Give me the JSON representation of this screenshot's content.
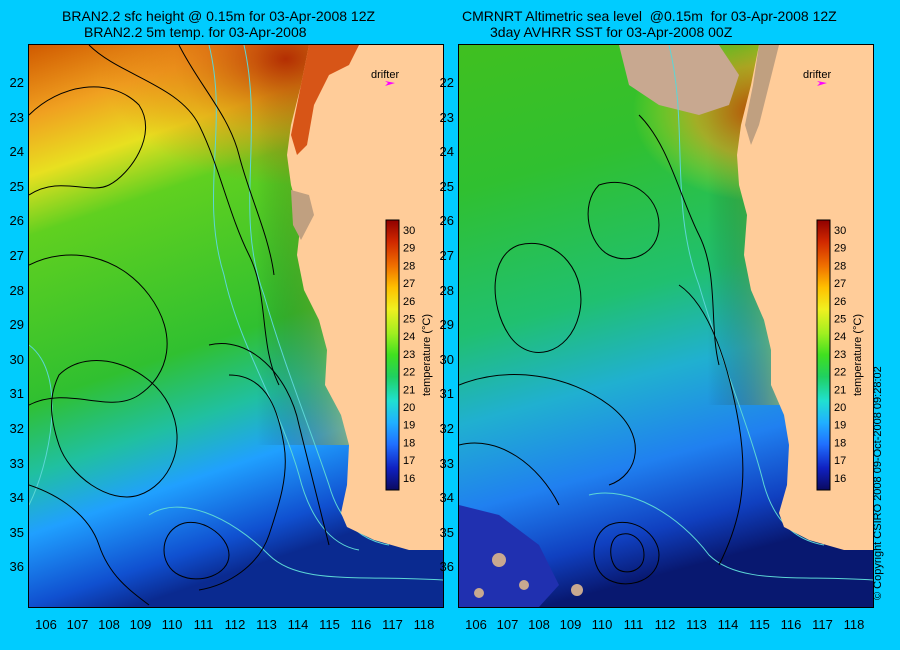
{
  "titles": {
    "left_line1": "BRAN2.2 sfc height @ 0.15m for 03-Apr-2008 12Z",
    "left_line2": "BRAN2.2 5m temp. for 03-Apr-2008",
    "right_line1": "CMRNRT Altimetric sea level  @0.15m  for 03-Apr-2008 12Z",
    "right_line2": "3day AVHRR SST for 03-Apr-2008 00Z"
  },
  "y_ticks": [
    "22",
    "23",
    "24",
    "25",
    "26",
    "27",
    "28",
    "29",
    "30",
    "31",
    "32",
    "33",
    "34",
    "35",
    "36"
  ],
  "x_ticks": [
    "106",
    "107",
    "108",
    "109",
    "110",
    "111",
    "112",
    "113",
    "114",
    "115",
    "116",
    "117",
    "118"
  ],
  "drifter_label": "drifter",
  "colorbar": {
    "label": "temperature (°C)",
    "ticks": [
      "30",
      "29",
      "28",
      "27",
      "26",
      "25",
      "24",
      "23",
      "22",
      "21",
      "20",
      "19",
      "18",
      "17",
      "16"
    ],
    "colors": [
      "#0a0a60",
      "#1020c0",
      "#2070ff",
      "#20b0ff",
      "#20e0d0",
      "#20d060",
      "#40e020",
      "#a0ef20",
      "#f0f020",
      "#ffc000",
      "#f07000",
      "#d02800",
      "#900000"
    ]
  },
  "credit": "© Copyright CSIRO 2008    09-Oct-2008 09:28:02",
  "colors": {
    "background": "#00ccff",
    "land": "#ffcc99",
    "contour": "#000000",
    "bathymetry": "#5cd6d6",
    "drifter_arrow": "#ff00ff"
  }
}
